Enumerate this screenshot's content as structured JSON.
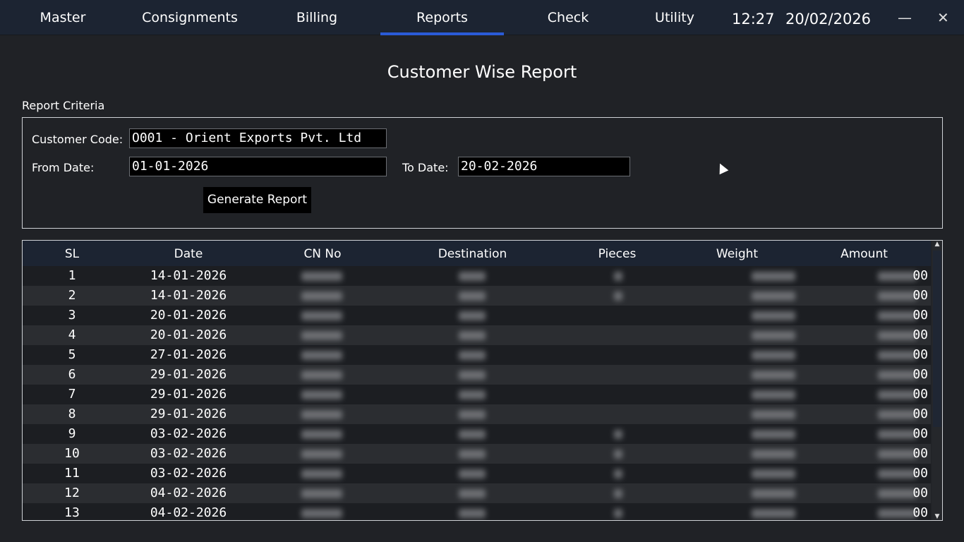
{
  "nav": {
    "items": [
      {
        "label": "Master"
      },
      {
        "label": "Consignments"
      },
      {
        "label": "Billing"
      },
      {
        "label": "Reports",
        "active": true
      },
      {
        "label": "Check"
      },
      {
        "label": "Utility"
      }
    ],
    "time": "12:27",
    "date": "20/02/2026",
    "minimize_icon": "—",
    "close_icon": "✕"
  },
  "page": {
    "title": "Customer Wise Report"
  },
  "criteria": {
    "label": "Report Criteria",
    "customer_code_label": "Customer Code:",
    "customer_code_value": "O001 - Orient Exports Pvt. Ltd",
    "from_date_label": "From Date:",
    "from_date_value": "01-01-2026",
    "to_date_label": "To Date:",
    "to_date_value": "20-02-2026",
    "generate_button": "Generate Report"
  },
  "table": {
    "columns": [
      "SL",
      "Date",
      "CN No",
      "Destination",
      "Pieces",
      "Weight",
      "Amount"
    ],
    "rows": [
      {
        "sl": "1",
        "date": "14-01-2026",
        "amount_tail": "00"
      },
      {
        "sl": "2",
        "date": "14-01-2026",
        "amount_tail": "00"
      },
      {
        "sl": "3",
        "date": "20-01-2026",
        "amount_tail": "00"
      },
      {
        "sl": "4",
        "date": "20-01-2026",
        "amount_tail": "00"
      },
      {
        "sl": "5",
        "date": "27-01-2026",
        "amount_tail": "00"
      },
      {
        "sl": "6",
        "date": "29-01-2026",
        "amount_tail": "00"
      },
      {
        "sl": "7",
        "date": "29-01-2026",
        "amount_tail": "00"
      },
      {
        "sl": "8",
        "date": "29-01-2026",
        "amount_tail": "00"
      },
      {
        "sl": "9",
        "date": "03-02-2026",
        "amount_tail": "00"
      },
      {
        "sl": "10",
        "date": "03-02-2026",
        "amount_tail": "00"
      },
      {
        "sl": "11",
        "date": "03-02-2026",
        "amount_tail": "00"
      },
      {
        "sl": "12",
        "date": "04-02-2026",
        "amount_tail": "00"
      },
      {
        "sl": "13",
        "date": "04-02-2026",
        "amount_tail": "00"
      }
    ]
  },
  "colors": {
    "accent": "#2a5bd7",
    "topbar": "#1c2432",
    "background": "#202226"
  }
}
